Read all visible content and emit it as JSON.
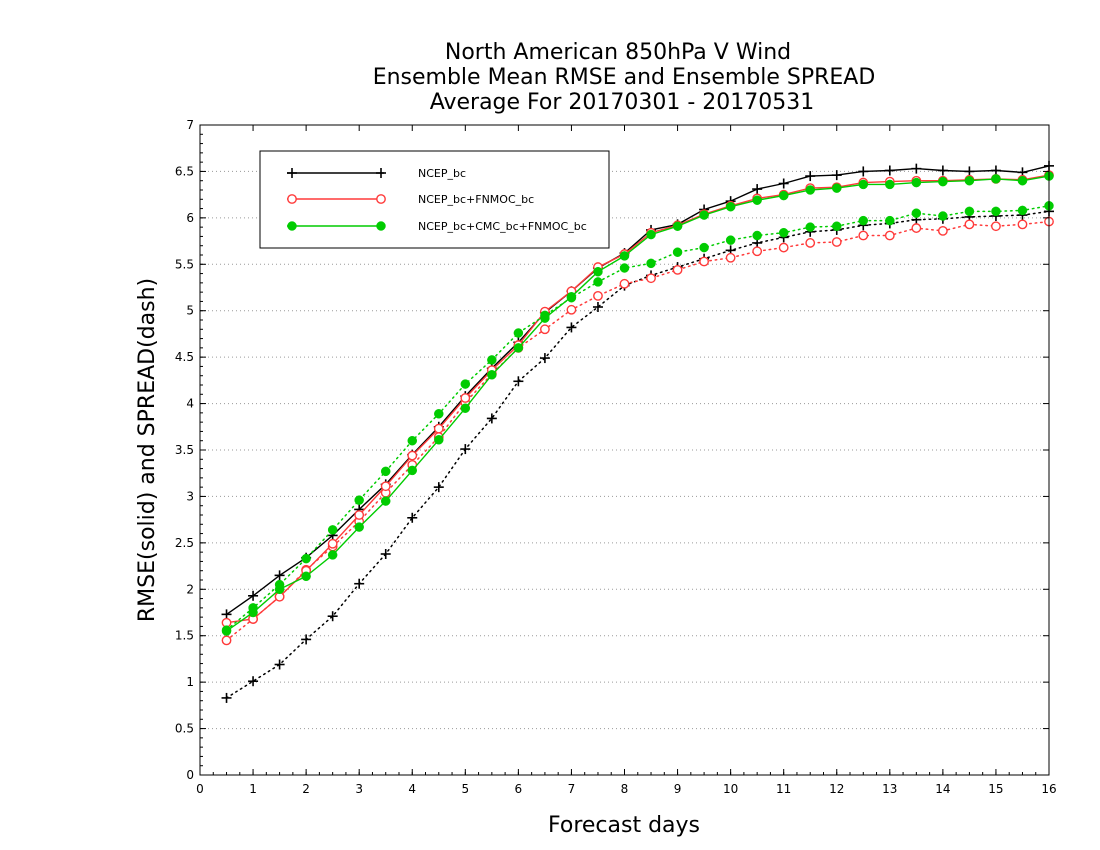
{
  "chart_data": {
    "type": "line",
    "title": [
      "North American 850hPa V Wind",
      "Ensemble Mean RMSE and Ensemble SPREAD",
      "Average For 20170301 - 20170531"
    ],
    "xlabel": "Forecast days",
    "ylabel": "RMSE(solid) and SPREAD(dash)",
    "xlim": [
      0,
      16
    ],
    "ylim": [
      0,
      7
    ],
    "x_ticks": [
      "0",
      "1",
      "2",
      "3",
      "4",
      "5",
      "6",
      "7",
      "8",
      "9",
      "10",
      "11",
      "12",
      "13",
      "14",
      "15",
      "16"
    ],
    "y_ticks": [
      "0",
      "0.5",
      "1",
      "1.5",
      "2",
      "2.5",
      "3",
      "3.5",
      "4",
      "4.5",
      "5",
      "5.5",
      "6",
      "6.5",
      "7"
    ],
    "grid": "horizontal dotted",
    "legend_position": "top-left",
    "x": [
      0.5,
      1,
      1.5,
      2,
      2.5,
      3,
      3.5,
      4,
      4.5,
      5,
      5.5,
      6,
      6.5,
      7,
      7.5,
      8,
      8.5,
      9,
      9.5,
      10,
      10.5,
      11,
      11.5,
      12,
      12.5,
      13,
      13.5,
      14,
      14.5,
      15,
      15.5,
      16
    ],
    "series": [
      {
        "name": "NCEP_bc",
        "color": "#000000",
        "marker": "plus",
        "rmse": [
          1.73,
          1.93,
          2.15,
          2.34,
          2.58,
          2.86,
          3.13,
          3.45,
          3.75,
          4.08,
          4.38,
          4.66,
          4.98,
          5.21,
          5.46,
          5.62,
          5.87,
          5.93,
          6.09,
          6.18,
          6.31,
          6.37,
          6.45,
          6.46,
          6.5,
          6.51,
          6.53,
          6.51,
          6.5,
          6.51,
          6.49,
          6.56
        ],
        "spread": [
          0.83,
          1.01,
          1.19,
          1.46,
          1.71,
          2.06,
          2.38,
          2.77,
          3.1,
          3.51,
          3.84,
          4.24,
          4.49,
          4.82,
          5.04,
          5.27,
          5.38,
          5.47,
          5.56,
          5.65,
          5.73,
          5.79,
          5.85,
          5.87,
          5.92,
          5.94,
          5.98,
          5.99,
          6.01,
          6.02,
          6.03,
          6.07
        ]
      },
      {
        "name": "NCEP_bc+FNMOC_bc",
        "color": "#ff3a3a",
        "marker": "open-circle",
        "rmse": [
          1.64,
          1.68,
          1.92,
          2.2,
          2.49,
          2.8,
          3.11,
          3.44,
          3.73,
          4.06,
          4.36,
          4.63,
          4.99,
          5.21,
          5.47,
          5.61,
          5.84,
          5.92,
          6.04,
          6.13,
          6.21,
          6.25,
          6.32,
          6.33,
          6.38,
          6.39,
          6.4,
          6.4,
          6.41,
          6.42,
          6.41,
          6.46
        ],
        "spread": [
          1.45,
          1.68,
          1.92,
          2.21,
          2.46,
          2.73,
          3.04,
          3.34,
          3.64,
          4.01,
          4.32,
          4.6,
          4.8,
          5.01,
          5.16,
          5.29,
          5.35,
          5.44,
          5.53,
          5.57,
          5.64,
          5.68,
          5.73,
          5.74,
          5.81,
          5.81,
          5.89,
          5.86,
          5.93,
          5.91,
          5.93,
          5.96
        ]
      },
      {
        "name": "NCEP_bc+CMC_bc+FNMOC_bc",
        "color": "#00cc00",
        "marker": "filled-circle",
        "rmse": [
          1.55,
          1.75,
          2.0,
          2.14,
          2.37,
          2.67,
          2.95,
          3.28,
          3.61,
          3.95,
          4.31,
          4.6,
          4.92,
          5.15,
          5.42,
          5.59,
          5.82,
          5.91,
          6.03,
          6.12,
          6.19,
          6.24,
          6.3,
          6.32,
          6.36,
          6.36,
          6.38,
          6.39,
          6.4,
          6.42,
          6.4,
          6.45
        ],
        "spread": [
          1.56,
          1.8,
          2.05,
          2.33,
          2.64,
          2.96,
          3.27,
          3.6,
          3.89,
          4.21,
          4.47,
          4.76,
          4.95,
          5.14,
          5.31,
          5.46,
          5.51,
          5.63,
          5.68,
          5.76,
          5.81,
          5.84,
          5.9,
          5.91,
          5.97,
          5.97,
          6.05,
          6.02,
          6.07,
          6.07,
          6.08,
          6.13
        ]
      }
    ]
  }
}
